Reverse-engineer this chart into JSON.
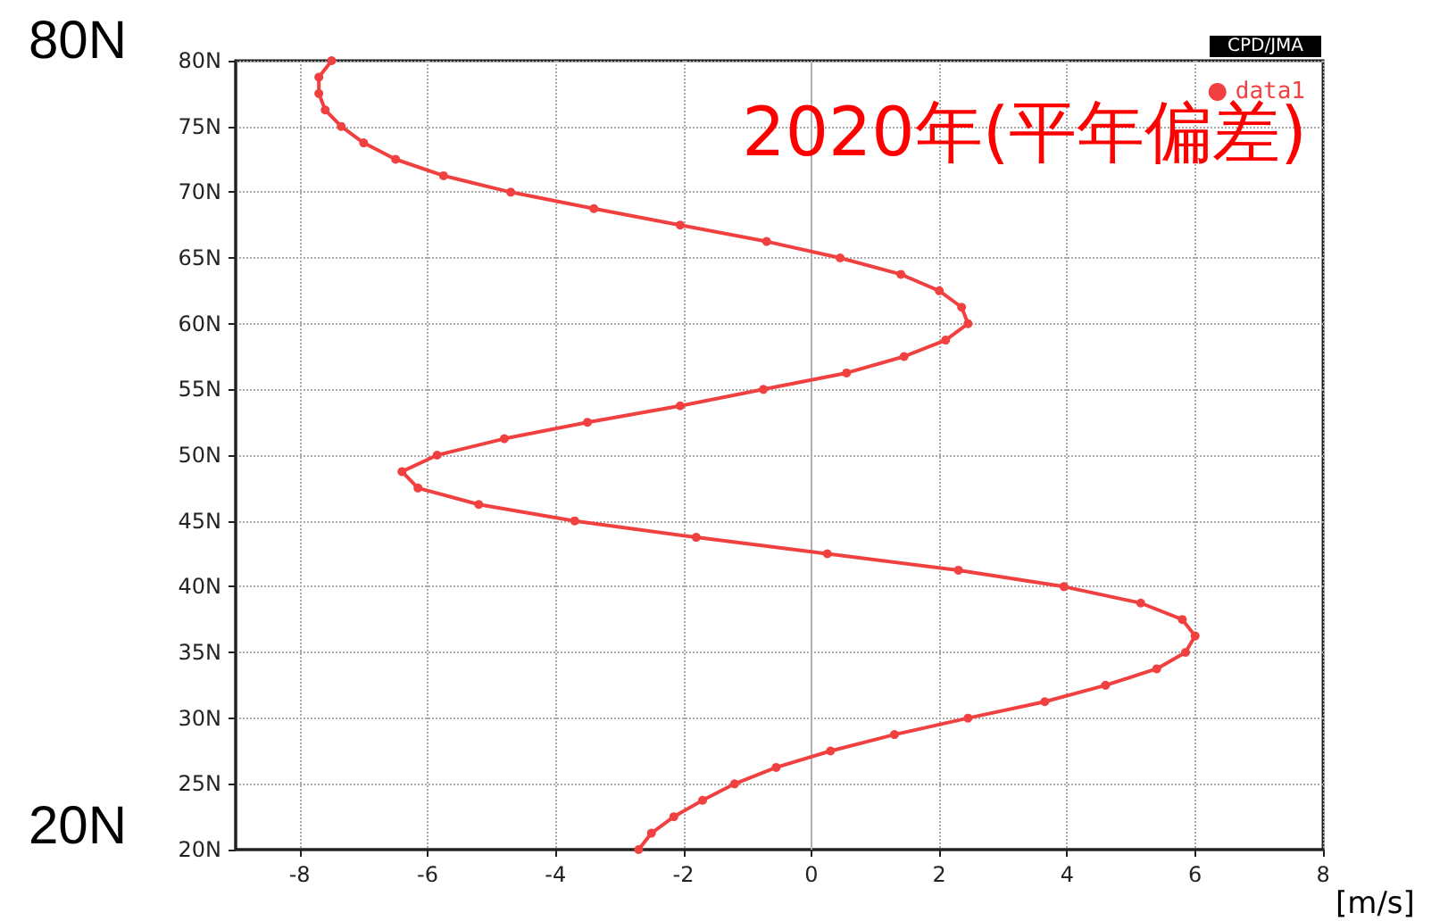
{
  "chart_data": {
    "type": "line",
    "title": "2020年(平年偏差)",
    "xlabel": "[m/s]",
    "annotations": [
      "CPD/JMA",
      "80N",
      "20N"
    ],
    "xlim": [
      -9,
      8
    ],
    "xticks": [
      -8,
      -6,
      -4,
      -2,
      0,
      2,
      4,
      6,
      8
    ],
    "ylim": [
      20,
      80
    ],
    "yticks": [
      {
        "value": 20,
        "label": "20N"
      },
      {
        "value": 25,
        "label": "25N"
      },
      {
        "value": 30,
        "label": "30N"
      },
      {
        "value": 35,
        "label": "35N"
      },
      {
        "value": 40,
        "label": "40N"
      },
      {
        "value": 45,
        "label": "45N"
      },
      {
        "value": 50,
        "label": "50N"
      },
      {
        "value": 55,
        "label": "55N"
      },
      {
        "value": 60,
        "label": "60N"
      },
      {
        "value": 65,
        "label": "65N"
      },
      {
        "value": 70,
        "label": "70N"
      },
      {
        "value": 75,
        "label": "75N"
      },
      {
        "value": 80,
        "label": "80N"
      }
    ],
    "grid": true,
    "legend": "top right",
    "marker": "circle",
    "line_style": "solid",
    "ref_lines": [
      {
        "axis": "x",
        "value": 0,
        "label": null,
        "color": "#b0b0b0"
      }
    ],
    "series": [
      {
        "name": "data1",
        "color": "#f04040",
        "x": [
          -7.5,
          -7.7,
          -7.7,
          -7.6,
          -7.35,
          -7.0,
          -6.5,
          -5.75,
          -4.7,
          -3.4,
          -2.05,
          -0.7,
          0.45,
          1.4,
          2.0,
          2.35,
          2.45,
          2.1,
          1.45,
          0.55,
          -0.75,
          -2.05,
          -3.5,
          -4.8,
          -5.85,
          -6.4,
          -6.15,
          -5.2,
          -3.7,
          -1.8,
          0.25,
          2.3,
          3.95,
          5.15,
          5.8,
          6.0,
          5.85,
          5.4,
          4.6,
          3.65,
          2.45,
          1.3,
          0.3,
          -0.55,
          -1.2,
          -1.7,
          -2.15,
          -2.5,
          -2.7
        ],
        "values": [
          80,
          78.75,
          77.5,
          76.25,
          75,
          73.75,
          72.5,
          71.25,
          70,
          68.75,
          67.5,
          66.25,
          65,
          63.75,
          62.5,
          61.25,
          60,
          58.75,
          57.5,
          56.25,
          55,
          53.75,
          52.5,
          51.25,
          50,
          48.75,
          47.5,
          46.25,
          45,
          43.75,
          42.5,
          41.25,
          40,
          38.75,
          37.5,
          36.25,
          35,
          33.75,
          32.5,
          31.25,
          30,
          28.75,
          27.5,
          26.25,
          25,
          23.75,
          22.5,
          21.25,
          20
        ]
      }
    ]
  }
}
